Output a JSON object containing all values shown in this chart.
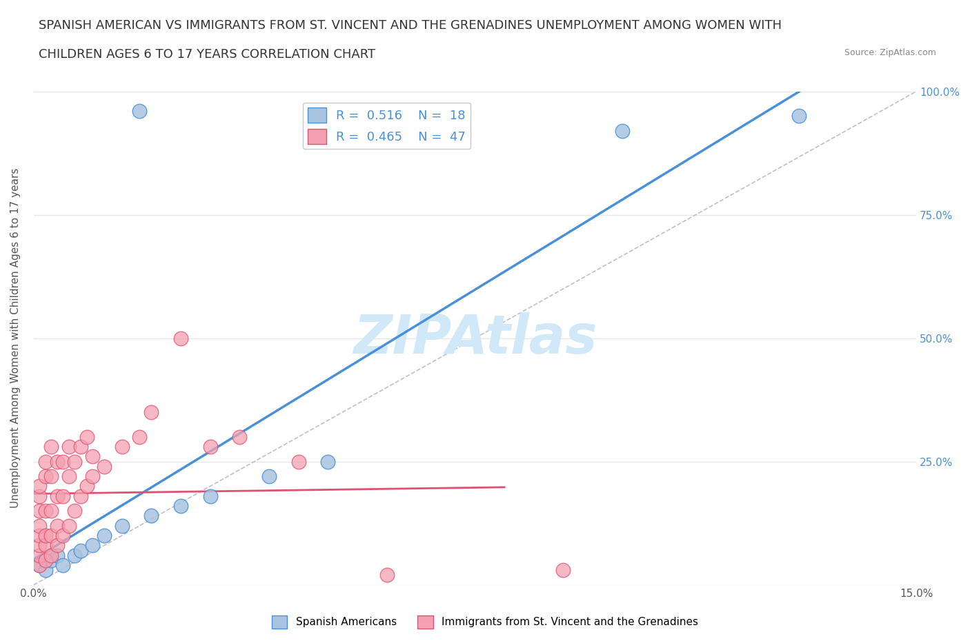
{
  "title_line1": "SPANISH AMERICAN VS IMMIGRANTS FROM ST. VINCENT AND THE GRENADINES UNEMPLOYMENT AMONG WOMEN WITH",
  "title_line2": "CHILDREN AGES 6 TO 17 YEARS CORRELATION CHART",
  "source_text": "Source: ZipAtlas.com",
  "ylabel": "Unemployment Among Women with Children Ages 6 to 17 years",
  "xlim": [
    0.0,
    0.15
  ],
  "ylim": [
    0.0,
    1.0
  ],
  "R_blue": 0.516,
  "N_blue": 18,
  "R_pink": 0.465,
  "N_pink": 47,
  "blue_color": "#a8c4e0",
  "pink_color": "#f4a0b0",
  "blue_line_color": "#4a90d9",
  "pink_line_color": "#e05070",
  "ref_line_color": "#c0c0c0",
  "watermark_color": "#d0e8f8",
  "legend_label_blue": "Spanish Americans",
  "legend_label_pink": "Immigrants from St. Vincent and the Grenadines",
  "blue_x": [
    0.001,
    0.002,
    0.003,
    0.004,
    0.005,
    0.007,
    0.008,
    0.01,
    0.012,
    0.015,
    0.02,
    0.025,
    0.03,
    0.04,
    0.05,
    0.018,
    0.1,
    0.13
  ],
  "blue_y": [
    0.04,
    0.03,
    0.05,
    0.06,
    0.04,
    0.06,
    0.07,
    0.08,
    0.1,
    0.12,
    0.14,
    0.16,
    0.18,
    0.22,
    0.25,
    0.96,
    0.92,
    0.95
  ],
  "pink_x": [
    0.001,
    0.001,
    0.001,
    0.001,
    0.001,
    0.001,
    0.001,
    0.001,
    0.002,
    0.002,
    0.002,
    0.002,
    0.002,
    0.002,
    0.003,
    0.003,
    0.003,
    0.003,
    0.003,
    0.004,
    0.004,
    0.004,
    0.004,
    0.005,
    0.005,
    0.005,
    0.006,
    0.006,
    0.006,
    0.007,
    0.007,
    0.008,
    0.008,
    0.009,
    0.009,
    0.01,
    0.01,
    0.012,
    0.015,
    0.018,
    0.02,
    0.025,
    0.03,
    0.035,
    0.045,
    0.06,
    0.09
  ],
  "pink_y": [
    0.04,
    0.06,
    0.08,
    0.1,
    0.12,
    0.15,
    0.18,
    0.2,
    0.05,
    0.08,
    0.1,
    0.15,
    0.22,
    0.25,
    0.06,
    0.1,
    0.15,
    0.22,
    0.28,
    0.08,
    0.12,
    0.18,
    0.25,
    0.1,
    0.18,
    0.25,
    0.12,
    0.22,
    0.28,
    0.15,
    0.25,
    0.18,
    0.28,
    0.2,
    0.3,
    0.22,
    0.26,
    0.24,
    0.28,
    0.3,
    0.35,
    0.5,
    0.28,
    0.3,
    0.25,
    0.02,
    0.03
  ],
  "background_color": "#ffffff",
  "grid_color": "#e8e8e8"
}
